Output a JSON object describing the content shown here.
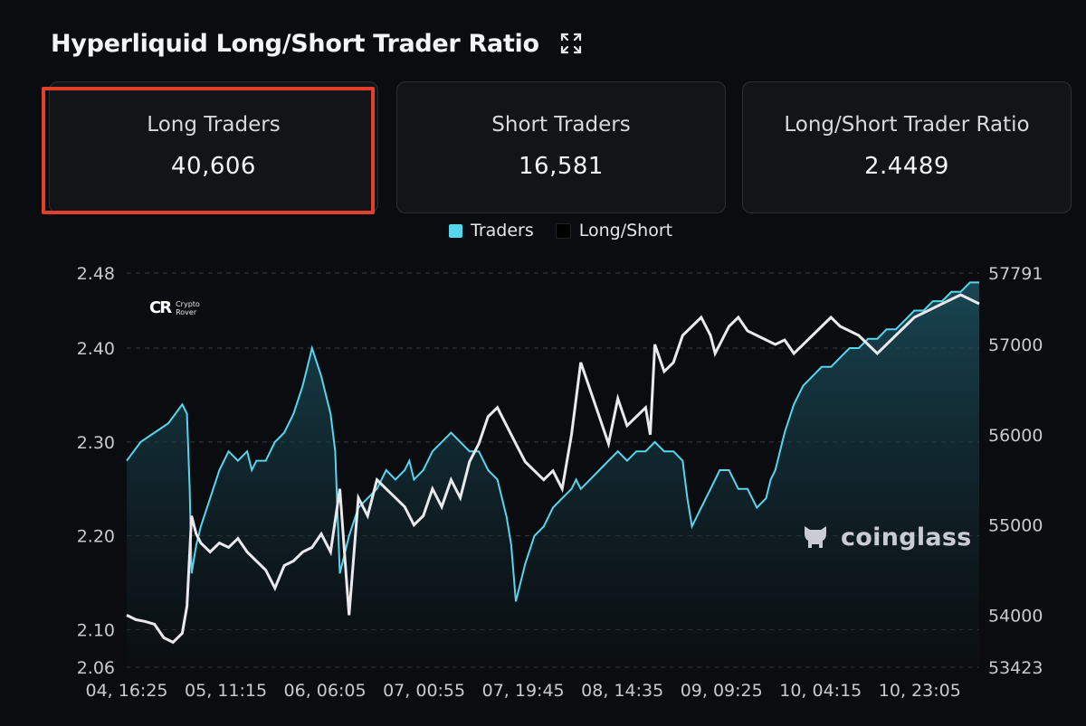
{
  "header": {
    "title": "Hyperliquid Long/Short Trader Ratio",
    "expand_icon": "expand-icon"
  },
  "cards": [
    {
      "label": "Long Traders",
      "value": "40,606",
      "highlighted": true
    },
    {
      "label": "Short Traders",
      "value": "16,581"
    },
    {
      "label": "Long/Short Trader Ratio",
      "value": "2.4489"
    }
  ],
  "legend": [
    {
      "name": "Traders",
      "color": "#55d6ee"
    },
    {
      "name": "Long/Short",
      "color": "#000000"
    }
  ],
  "watermarks": {
    "coinglass": "coinglass",
    "crypto_rover": "Crypto Rover"
  },
  "colors": {
    "traders": "#55d6ee",
    "ratio": "#e9e9ee",
    "highlight": "#e0402c",
    "background": "#0b0c0f"
  },
  "chart_data": {
    "type": "line",
    "x_ticks": [
      "04, 16:25",
      "05, 11:15",
      "06, 06:05",
      "07, 00:55",
      "07, 19:45",
      "08, 14:35",
      "09, 09:25",
      "10, 04:15",
      "10, 23:05"
    ],
    "y_left_ticks": [
      "2.48",
      "2.40",
      "2.30",
      "2.20",
      "2.10",
      "2.06"
    ],
    "y_right_ticks": [
      "57791",
      "57000",
      "56000",
      "55000",
      "54000",
      "53423"
    ],
    "ylim_left": [
      2.06,
      2.48
    ],
    "ylim_right": [
      53423,
      57791
    ],
    "grid": true,
    "legend_position": "top-center",
    "series": [
      {
        "name": "Traders",
        "axis": "left",
        "style": "area",
        "x": [
          0,
          0.15,
          0.3,
          0.45,
          0.6,
          0.65,
          0.68,
          0.7,
          0.75,
          0.8,
          0.9,
          1.0,
          1.1,
          1.2,
          1.3,
          1.35,
          1.4,
          1.5,
          1.6,
          1.7,
          1.8,
          1.9,
          2.0,
          2.1,
          2.2,
          2.25,
          2.3,
          2.4,
          2.5,
          2.6,
          2.7,
          2.8,
          2.9,
          3.0,
          3.05,
          3.1,
          3.2,
          3.3,
          3.4,
          3.5,
          3.6,
          3.7,
          3.8,
          3.9,
          4.0,
          4.1,
          4.15,
          4.2,
          4.3,
          4.4,
          4.5,
          4.6,
          4.7,
          4.8,
          4.85,
          4.9,
          5.0,
          5.1,
          5.2,
          5.3,
          5.4,
          5.5,
          5.6,
          5.7,
          5.8,
          5.9,
          6.0,
          6.05,
          6.1,
          6.2,
          6.3,
          6.4,
          6.5,
          6.6,
          6.7,
          6.8,
          6.9,
          6.95,
          7.0,
          7.1,
          7.2,
          7.3,
          7.4,
          7.5,
          7.6,
          7.7,
          7.8,
          7.9,
          8.0,
          8.1,
          8.2,
          8.3,
          8.4,
          8.5,
          8.6,
          8.7,
          8.8,
          8.9,
          9.0,
          9.1,
          9.2
        ],
        "values": [
          2.28,
          2.3,
          2.31,
          2.32,
          2.34,
          2.33,
          2.25,
          2.16,
          2.19,
          2.21,
          2.24,
          2.27,
          2.29,
          2.28,
          2.29,
          2.27,
          2.28,
          2.28,
          2.3,
          2.31,
          2.33,
          2.36,
          2.4,
          2.37,
          2.33,
          2.29,
          2.16,
          2.2,
          2.23,
          2.24,
          2.25,
          2.27,
          2.26,
          2.27,
          2.28,
          2.26,
          2.27,
          2.29,
          2.3,
          2.31,
          2.3,
          2.29,
          2.29,
          2.27,
          2.26,
          2.22,
          2.19,
          2.13,
          2.17,
          2.2,
          2.21,
          2.23,
          2.24,
          2.25,
          2.26,
          2.25,
          2.26,
          2.27,
          2.28,
          2.29,
          2.28,
          2.29,
          2.29,
          2.3,
          2.29,
          2.29,
          2.28,
          2.24,
          2.21,
          2.23,
          2.25,
          2.27,
          2.27,
          2.25,
          2.25,
          2.23,
          2.24,
          2.26,
          2.27,
          2.31,
          2.34,
          2.36,
          2.37,
          2.38,
          2.38,
          2.39,
          2.4,
          2.4,
          2.41,
          2.41,
          2.42,
          2.42,
          2.43,
          2.44,
          2.44,
          2.45,
          2.45,
          2.46,
          2.46,
          2.47,
          2.47
        ]
      },
      {
        "name": "Long/Short",
        "axis": "right",
        "style": "line",
        "x": [
          0,
          0.1,
          0.2,
          0.3,
          0.4,
          0.5,
          0.6,
          0.65,
          0.7,
          0.75,
          0.8,
          0.9,
          1.0,
          1.1,
          1.2,
          1.3,
          1.4,
          1.5,
          1.6,
          1.7,
          1.8,
          1.9,
          2.0,
          2.1,
          2.2,
          2.3,
          2.4,
          2.5,
          2.6,
          2.7,
          2.8,
          2.9,
          3.0,
          3.1,
          3.2,
          3.3,
          3.4,
          3.5,
          3.6,
          3.7,
          3.8,
          3.9,
          4.0,
          4.1,
          4.2,
          4.3,
          4.4,
          4.5,
          4.6,
          4.7,
          4.8,
          4.9,
          5.0,
          5.1,
          5.2,
          5.3,
          5.4,
          5.5,
          5.6,
          5.65,
          5.7,
          5.8,
          5.9,
          6.0,
          6.1,
          6.2,
          6.3,
          6.35,
          6.4,
          6.5,
          6.6,
          6.7,
          6.8,
          6.9,
          7.0,
          7.1,
          7.2,
          7.3,
          7.4,
          7.5,
          7.6,
          7.7,
          7.8,
          7.9,
          8.0,
          8.1,
          8.2,
          8.3,
          8.4,
          8.5,
          8.6,
          8.7,
          8.8,
          8.9,
          9.0,
          9.1,
          9.2
        ],
        "values": [
          54000,
          53950,
          53930,
          53900,
          53750,
          53700,
          53800,
          54100,
          55100,
          54900,
          54800,
          54700,
          54800,
          54750,
          54850,
          54700,
          54600,
          54500,
          54300,
          54550,
          54600,
          54700,
          54750,
          54900,
          54700,
          55400,
          54000,
          55300,
          55100,
          55500,
          55400,
          55300,
          55200,
          55000,
          55100,
          55400,
          55200,
          55500,
          55300,
          55700,
          55900,
          56200,
          56300,
          56100,
          55900,
          55700,
          55600,
          55500,
          55600,
          55400,
          56000,
          56800,
          56500,
          56200,
          55900,
          56400,
          56100,
          56200,
          56300,
          56000,
          57000,
          56700,
          56800,
          57100,
          57200,
          57300,
          57100,
          56900,
          57000,
          57200,
          57300,
          57150,
          57100,
          57050,
          57000,
          57050,
          56900,
          57000,
          57100,
          57200,
          57300,
          57200,
          57150,
          57100,
          57000,
          56900,
          57000,
          57100,
          57200,
          57300,
          57350,
          57400,
          57450,
          57500,
          57550,
          57500,
          57450
        ]
      }
    ]
  }
}
